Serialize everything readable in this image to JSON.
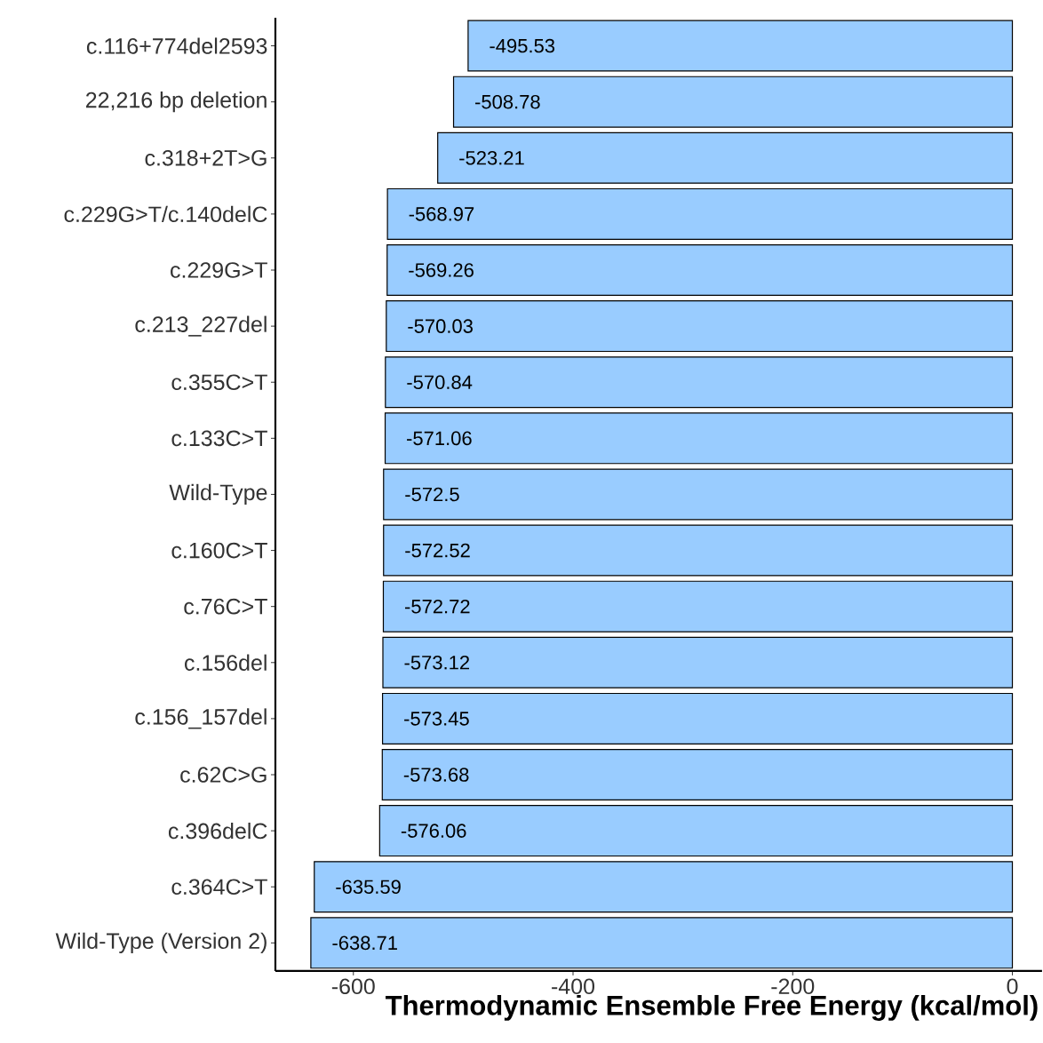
{
  "chart_data": {
    "type": "bar",
    "orientation": "horizontal",
    "xlabel": "Thermodynamic Ensemble Free Energy (kcal/mol)",
    "categories": [
      "c.116+774del2593",
      "22,216 bp deletion",
      "c.318+2T>G",
      "c.229G>T/c.140delC",
      "c.229G>T",
      "c.213_227del",
      "c.355C>T",
      "c.133C>T",
      "Wild-Type",
      "c.160C>T",
      "c.76C>T",
      "c.156del",
      "c.156_157del",
      "c.62C>G",
      "c.396delC",
      "c.364C>T",
      "Wild-Type (Version 2)"
    ],
    "values": [
      -495.53,
      -508.78,
      -523.21,
      -568.97,
      -569.26,
      -570.03,
      -570.84,
      -571.06,
      -572.5,
      -572.52,
      -572.72,
      -573.12,
      -573.45,
      -573.68,
      -576.06,
      -635.59,
      -638.71
    ],
    "value_labels": [
      "-495.53",
      "-508.78",
      "-523.21",
      "-568.97",
      "-569.26",
      "-570.03",
      "-570.84",
      "-571.06",
      "-572.5",
      "-572.52",
      "-572.72",
      "-573.12",
      "-573.45",
      "-573.68",
      "-576.06",
      "-635.59",
      "-638.71"
    ],
    "color": "#99ccff",
    "xlim": [
      -671,
      27
    ],
    "xticks": [
      -600,
      -400,
      -200,
      0
    ]
  }
}
